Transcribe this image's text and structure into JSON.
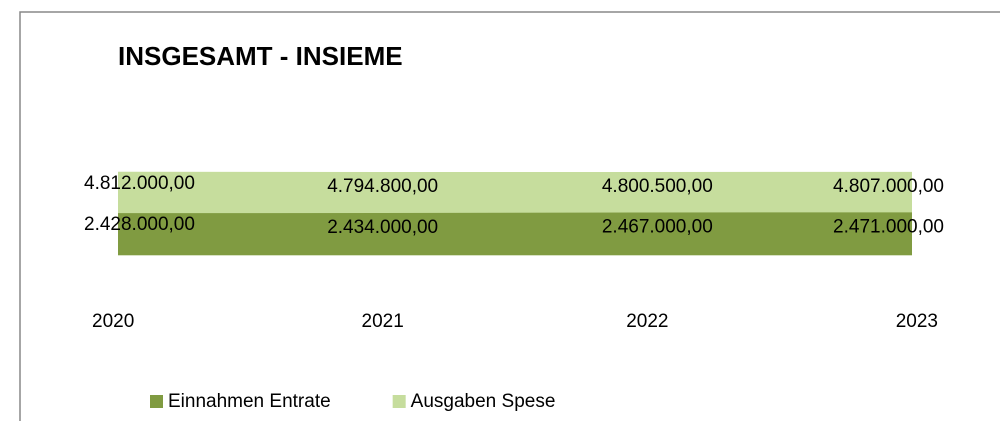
{
  "chart_data": {
    "type": "area",
    "title": "INSGESAMT - INSIEME",
    "categories": [
      "2020",
      "2021",
      "2022",
      "2023"
    ],
    "series": [
      {
        "name": "Ausgaben Spese",
        "color": "#c6dd9d",
        "values": [
          4812000,
          4794800,
          4800500,
          4807000
        ],
        "value_labels": [
          "4.812.000,00",
          "4.794.800,00",
          "4.800.500,00",
          "4.807.000,00"
        ]
      },
      {
        "name": "Einnahmen Entrate",
        "color": "#809b41",
        "values": [
          2428000,
          2434000,
          2467000,
          2471000
        ],
        "value_labels": [
          "2.428.000,00",
          "2.434.000,00",
          "2.467.000,00",
          "2.471.000,00"
        ]
      }
    ],
    "ylim": [
      -2000000,
      5000000
    ],
    "legend": "bottom"
  }
}
